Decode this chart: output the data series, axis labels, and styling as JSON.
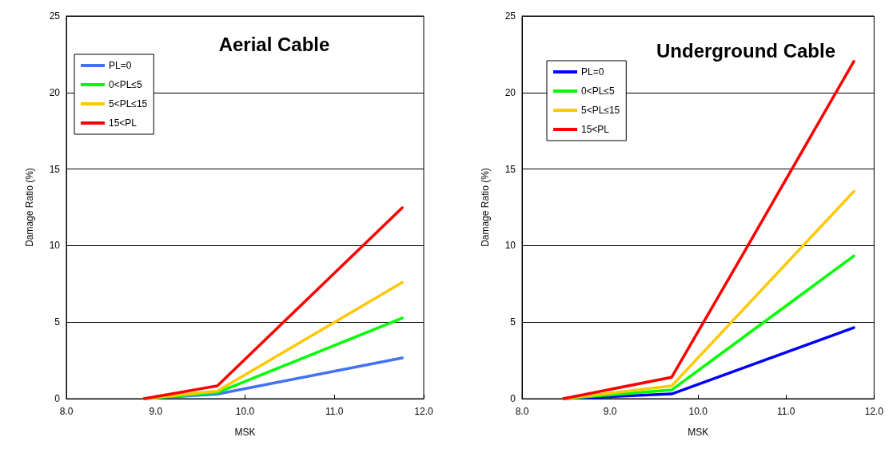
{
  "chart_data": [
    {
      "type": "line",
      "title": "Aerial Cable",
      "xlabel": "MSK",
      "ylabel": "Damage Ratio (%)",
      "xlim": [
        8,
        12
      ],
      "xticks": [
        {
          "value": 8,
          "label": "8.0"
        },
        {
          "value": 9,
          "label": "9.0"
        },
        {
          "value": 10,
          "label": "10.0"
        },
        {
          "value": 11,
          "label": "11.0"
        },
        {
          "value": 12,
          "label": "12.0"
        }
      ],
      "ylim": [
        0,
        25
      ],
      "yticks": [
        0,
        5,
        10,
        15,
        20,
        25
      ],
      "grid": "y",
      "legend": "top left",
      "marker": "none",
      "line_style": "solid",
      "series": [
        {
          "name": "PL=0",
          "color": "#4472f4",
          "x": [
            8.87,
            9.69,
            11.76
          ],
          "values": [
            0,
            0.3,
            2.66
          ]
        },
        {
          "name": "0<PL≤5",
          "color": "#00ff00",
          "x": [
            8.87,
            9.69,
            11.76
          ],
          "values": [
            0,
            0.4,
            5.27
          ]
        },
        {
          "name": "5<PL≤15",
          "color": "#ffc800",
          "x": [
            8.87,
            9.69,
            11.76
          ],
          "values": [
            0,
            0.5,
            7.6
          ]
        },
        {
          "name": "15<PL",
          "color": "#ff0000",
          "x": [
            8.87,
            9.69,
            11.76
          ],
          "values": [
            0,
            0.84,
            12.47
          ]
        }
      ]
    },
    {
      "type": "line",
      "title": "Underground Cable",
      "xlabel": "MSK",
      "ylabel": "Damage Ratio (%)",
      "xlim": [
        8,
        12
      ],
      "xticks": [
        {
          "value": 8,
          "label": "8.0"
        },
        {
          "value": 9,
          "label": "9.0"
        },
        {
          "value": 10,
          "label": "10.0"
        },
        {
          "value": 11,
          "label": "11.0"
        },
        {
          "value": 12,
          "label": "12.0"
        }
      ],
      "ylim": [
        0,
        25
      ],
      "yticks": [
        0,
        5,
        10,
        15,
        20,
        25
      ],
      "grid": "y",
      "legend": "top left",
      "marker": "none",
      "line_style": "solid",
      "series": [
        {
          "name": "PL=0",
          "color": "#0000ff",
          "x": [
            8.47,
            9.7,
            11.77
          ],
          "values": [
            0,
            0.31,
            4.64
          ]
        },
        {
          "name": "0<PL≤5",
          "color": "#00ff00",
          "x": [
            8.47,
            9.7,
            11.77
          ],
          "values": [
            0,
            0.57,
            9.32
          ]
        },
        {
          "name": "5<PL≤15",
          "color": "#ffc800",
          "x": [
            8.47,
            9.7,
            11.77
          ],
          "values": [
            0,
            0.83,
            13.54
          ]
        },
        {
          "name": "15<PL",
          "color": "#ff0000",
          "x": [
            8.47,
            9.7,
            10.53,
            11.77
          ],
          "values": [
            0,
            1.4,
            9.64,
            22.03
          ]
        }
      ]
    }
  ]
}
